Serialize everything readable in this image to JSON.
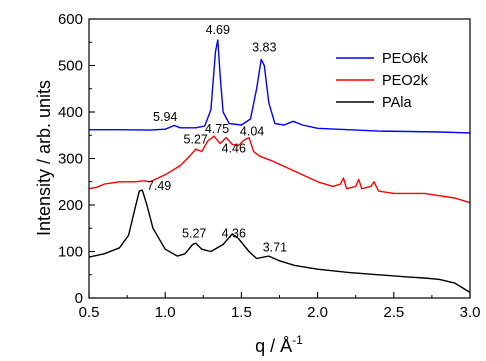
{
  "chart_data": {
    "type": "line",
    "xlabel": "q / Å",
    "xlabel_sup": "-1",
    "ylabel": "Intensity / arb. units",
    "xlim": [
      0.5,
      3.0
    ],
    "ylim": [
      0,
      600
    ],
    "x_ticks": [
      0.5,
      1.0,
      1.5,
      2.0,
      2.5,
      3.0
    ],
    "x_tick_labels": [
      "0.5",
      "1.0",
      "1.5",
      "2.0",
      "2.5",
      "3.0"
    ],
    "y_ticks": [
      0,
      100,
      200,
      300,
      400,
      500,
      600
    ],
    "y_tick_labels": [
      "0",
      "100",
      "200",
      "300",
      "400",
      "500",
      "600"
    ],
    "grid": false,
    "legend_position": "top-right",
    "series": [
      {
        "name": "PEO6k",
        "color": "#0000ff",
        "points": [
          [
            0.5,
            362
          ],
          [
            0.7,
            362
          ],
          [
            0.9,
            361
          ],
          [
            1.0,
            363
          ],
          [
            1.06,
            371
          ],
          [
            1.1,
            366
          ],
          [
            1.2,
            366
          ],
          [
            1.26,
            370
          ],
          [
            1.3,
            405
          ],
          [
            1.33,
            530
          ],
          [
            1.345,
            555
          ],
          [
            1.36,
            480
          ],
          [
            1.38,
            400
          ],
          [
            1.42,
            375
          ],
          [
            1.5,
            372
          ],
          [
            1.56,
            385
          ],
          [
            1.6,
            450
          ],
          [
            1.63,
            513
          ],
          [
            1.65,
            500
          ],
          [
            1.68,
            420
          ],
          [
            1.72,
            375
          ],
          [
            1.78,
            372
          ],
          [
            1.84,
            380
          ],
          [
            1.9,
            372
          ],
          [
            2.0,
            365
          ],
          [
            2.2,
            362
          ],
          [
            2.4,
            359
          ],
          [
            2.6,
            358
          ],
          [
            2.8,
            357
          ],
          [
            3.0,
            355
          ]
        ]
      },
      {
        "name": "PEO2k",
        "color": "#ff0000",
        "points": [
          [
            0.5,
            235
          ],
          [
            0.55,
            238
          ],
          [
            0.6,
            245
          ],
          [
            0.7,
            250
          ],
          [
            0.8,
            250
          ],
          [
            0.86,
            252
          ],
          [
            0.9,
            250
          ],
          [
            1.0,
            265
          ],
          [
            1.1,
            285
          ],
          [
            1.16,
            305
          ],
          [
            1.2,
            320
          ],
          [
            1.24,
            315
          ],
          [
            1.28,
            338
          ],
          [
            1.32,
            348
          ],
          [
            1.36,
            332
          ],
          [
            1.4,
            345
          ],
          [
            1.44,
            330
          ],
          [
            1.48,
            328
          ],
          [
            1.52,
            340
          ],
          [
            1.55,
            345
          ],
          [
            1.58,
            315
          ],
          [
            1.62,
            305
          ],
          [
            1.7,
            295
          ],
          [
            1.8,
            280
          ],
          [
            1.9,
            265
          ],
          [
            2.0,
            250
          ],
          [
            2.1,
            240
          ],
          [
            2.15,
            245
          ],
          [
            2.17,
            258
          ],
          [
            2.19,
            235
          ],
          [
            2.25,
            240
          ],
          [
            2.27,
            255
          ],
          [
            2.29,
            235
          ],
          [
            2.35,
            240
          ],
          [
            2.37,
            250
          ],
          [
            2.4,
            230
          ],
          [
            2.5,
            225
          ],
          [
            2.6,
            225
          ],
          [
            2.7,
            225
          ],
          [
            2.8,
            220
          ],
          [
            2.9,
            215
          ],
          [
            3.0,
            205
          ]
        ]
      },
      {
        "name": "PAla",
        "color": "#000000",
        "points": [
          [
            0.5,
            88
          ],
          [
            0.6,
            95
          ],
          [
            0.7,
            108
          ],
          [
            0.76,
            135
          ],
          [
            0.8,
            190
          ],
          [
            0.83,
            230
          ],
          [
            0.85,
            232
          ],
          [
            0.88,
            200
          ],
          [
            0.92,
            150
          ],
          [
            1.0,
            105
          ],
          [
            1.08,
            90
          ],
          [
            1.13,
            95
          ],
          [
            1.18,
            115
          ],
          [
            1.2,
            118
          ],
          [
            1.24,
            105
          ],
          [
            1.3,
            100
          ],
          [
            1.38,
            115
          ],
          [
            1.44,
            138
          ],
          [
            1.48,
            128
          ],
          [
            1.55,
            100
          ],
          [
            1.6,
            85
          ],
          [
            1.68,
            90
          ],
          [
            1.75,
            80
          ],
          [
            1.85,
            70
          ],
          [
            2.0,
            62
          ],
          [
            2.2,
            55
          ],
          [
            2.4,
            50
          ],
          [
            2.6,
            45
          ],
          [
            2.7,
            43
          ],
          [
            2.8,
            40
          ],
          [
            2.9,
            32
          ],
          [
            3.0,
            12
          ]
        ]
      }
    ],
    "annotations": [
      {
        "text": "4.69",
        "x": 1.345,
        "y": 568
      },
      {
        "text": "3.83",
        "x": 1.65,
        "y": 530
      },
      {
        "text": "5.94",
        "x": 1.0,
        "y": 381
      },
      {
        "text": "5.27",
        "x": 1.2,
        "y": 332
      },
      {
        "text": "4.75",
        "x": 1.34,
        "y": 355
      },
      {
        "text": "4.04",
        "x": 1.57,
        "y": 350
      },
      {
        "text": "4.46",
        "x": 1.45,
        "y": 313
      },
      {
        "text": "7.49",
        "x": 0.96,
        "y": 232
      },
      {
        "text": "5.27",
        "x": 1.19,
        "y": 130
      },
      {
        "text": "4.36",
        "x": 1.45,
        "y": 130
      },
      {
        "text": "3.71",
        "x": 1.72,
        "y": 100
      }
    ]
  }
}
